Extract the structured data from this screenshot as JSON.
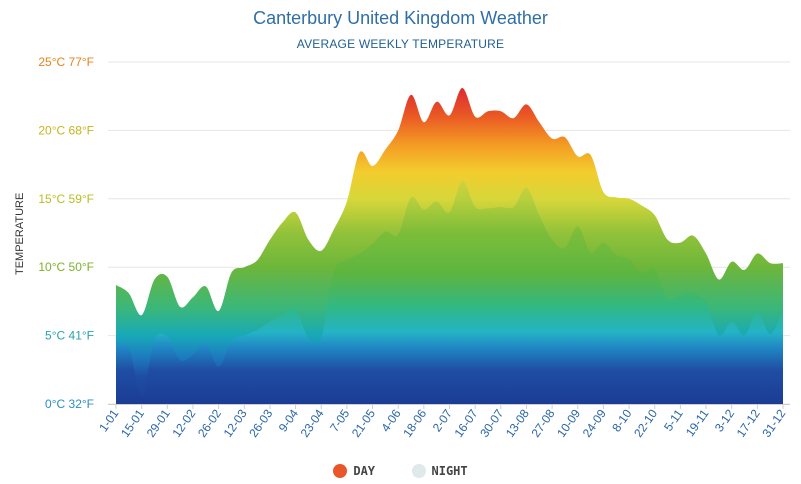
{
  "chart_data": {
    "type": "area",
    "title": "Canterbury United Kingdom Weather",
    "subtitle": "AVERAGE WEEKLY TEMPERATURE",
    "ylabel": "TEMPERATURE",
    "ylim": [
      0,
      25
    ],
    "y_ticks": [
      {
        "value": 25,
        "label": "25°C 77°F",
        "color": "#e8821a"
      },
      {
        "value": 20,
        "label": "20°C 68°F",
        "color": "#c6b51c"
      },
      {
        "value": 15,
        "label": "15°C 59°F",
        "color": "#b8be20"
      },
      {
        "value": 10,
        "label": "10°C 50°F",
        "color": "#7fb02c"
      },
      {
        "value": 5,
        "label": "5°C 41°F",
        "color": "#26a3b0"
      },
      {
        "value": 0,
        "label": "0°C 32°F",
        "color": "#2a8fc4"
      }
    ],
    "x_ticks": [
      "1-01",
      "15-01",
      "29-01",
      "12-02",
      "26-02",
      "12-03",
      "26-03",
      "9-04",
      "23-04",
      "7-05",
      "21-05",
      "4-06",
      "18-06",
      "2-07",
      "16-07",
      "30-07",
      "13-08",
      "27-08",
      "10-09",
      "24-09",
      "8-10",
      "22-10",
      "5-11",
      "19-11",
      "3-12",
      "17-12",
      "31-12"
    ],
    "grid": true,
    "legend_position": "bottom",
    "series": [
      {
        "name": "DAY",
        "color": "#e8562a",
        "values": [
          8.7,
          8.1,
          6.5,
          9.1,
          9.3,
          7.1,
          7.8,
          8.6,
          6.8,
          9.6,
          10.0,
          10.5,
          12.0,
          13.3,
          14.0,
          12.0,
          11.2,
          12.8,
          14.8,
          18.4,
          17.4,
          18.6,
          20.0,
          22.6,
          20.6,
          22.1,
          21.1,
          23.1,
          21.0,
          21.4,
          21.4,
          20.9,
          21.9,
          20.6,
          19.4,
          19.5,
          18.1,
          18.2,
          15.5,
          15.1,
          15.0,
          14.5,
          13.8,
          12.0,
          11.8,
          12.3,
          11.0,
          9.1,
          10.4,
          9.8,
          11.0,
          10.3,
          10.3
        ]
      },
      {
        "name": "NIGHT",
        "color": "#dfe8ea",
        "values": [
          4.3,
          4.2,
          0.6,
          4.7,
          4.9,
          3.2,
          3.6,
          4.5,
          2.7,
          4.6,
          5.0,
          5.4,
          6.0,
          6.5,
          6.9,
          4.8,
          4.8,
          9.7,
          10.5,
          11.0,
          11.7,
          12.6,
          12.4,
          15.1,
          14.2,
          14.8,
          14.0,
          16.3,
          14.4,
          14.3,
          14.4,
          14.4,
          15.8,
          13.8,
          12.0,
          11.4,
          13.0,
          11.1,
          11.8,
          10.9,
          10.6,
          9.6,
          9.9,
          7.7,
          8.0,
          8.2,
          7.4,
          5.0,
          6.0,
          5.0,
          6.7,
          5.1,
          6.8
        ]
      }
    ]
  }
}
